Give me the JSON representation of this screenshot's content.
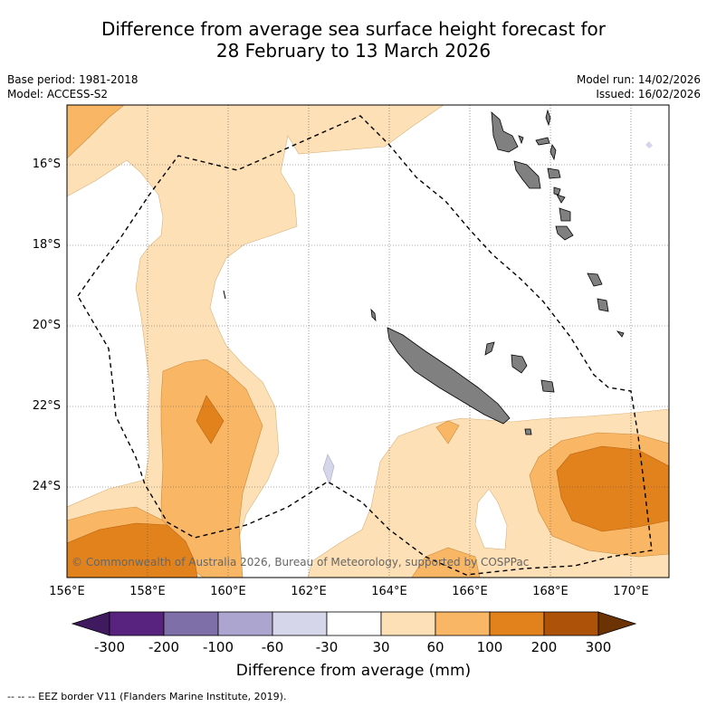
{
  "title": {
    "line1": "Difference from average sea surface height forecast for",
    "line2": "28 February to 13 March 2026"
  },
  "meta": {
    "base_period": "Base period: 1981-2018",
    "model": "Model: ACCESS-S2",
    "model_run": "Model run: 14/02/2026",
    "issued": "Issued: 16/02/2026"
  },
  "map": {
    "lat_labels": [
      "16°S",
      "18°S",
      "20°S",
      "22°S",
      "24°S"
    ],
    "lon_labels": [
      "156°E",
      "158°E",
      "160°E",
      "162°E",
      "164°E",
      "166°E",
      "168°E",
      "170°E"
    ],
    "copyright": "© Commonwealth of Australia 2026, Bureau of Meteorology, supported by COSPPac"
  },
  "colorbar": {
    "ticks": [
      "-300",
      "-200",
      "-100",
      "-60",
      "-30",
      "30",
      "60",
      "100",
      "200",
      "300"
    ],
    "colors": [
      "#3f1a5e",
      "#57237f",
      "#7f6fa9",
      "#aca5cf",
      "#d6d6ea",
      "#ffffff",
      "#fde0b6",
      "#f9b765",
      "#e2821c",
      "#ad5209",
      "#6b3303"
    ],
    "label": "Difference from average (mm)"
  },
  "legend": {
    "eez": "--  --  -- EEZ border V11 (Flanders Marine Institute, 2019)."
  }
}
